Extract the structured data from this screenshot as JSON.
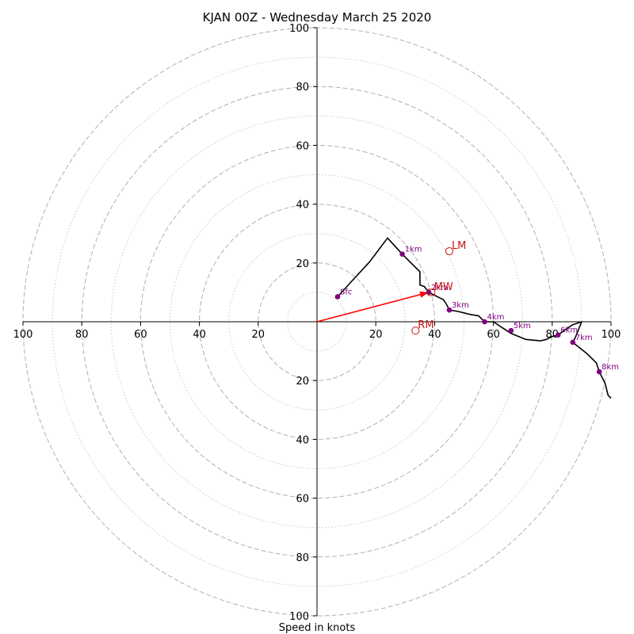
{
  "chart_data": {
    "type": "hodograph",
    "title": "KJAN 00Z - Wednesday March 25 2020",
    "xlabel": "Speed in knots",
    "units": "knots",
    "range": [
      -100,
      100
    ],
    "major_rings": [
      20,
      40,
      60,
      80,
      100
    ],
    "minor_rings": [
      10,
      30,
      50,
      70,
      90
    ],
    "x_tick_labels": [
      "100",
      "80",
      "60",
      "40",
      "20",
      "20",
      "40",
      "60",
      "80",
      "100"
    ],
    "x_tick_values": [
      -100,
      -80,
      -60,
      -40,
      -20,
      20,
      40,
      60,
      80,
      100
    ],
    "y_tick_labels": [
      "100",
      "80",
      "60",
      "40",
      "20",
      "20",
      "40",
      "60",
      "80",
      "100"
    ],
    "y_tick_values": [
      100,
      80,
      60,
      40,
      20,
      -20,
      -40,
      -60,
      -80,
      -100
    ],
    "trace": [
      [
        7,
        8.5
      ],
      [
        12,
        14
      ],
      [
        18,
        20.5
      ],
      [
        24,
        28.5
      ],
      [
        29,
        23
      ],
      [
        32,
        20
      ],
      [
        35,
        17
      ],
      [
        35,
        15
      ],
      [
        35,
        12.5
      ],
      [
        36.5,
        12
      ],
      [
        38,
        10
      ],
      [
        40,
        9
      ],
      [
        42,
        8
      ],
      [
        43,
        7.5
      ],
      [
        44,
        6
      ],
      [
        45,
        4
      ],
      [
        48,
        3.5
      ],
      [
        52,
        2.5
      ],
      [
        55,
        2
      ],
      [
        57,
        0
      ],
      [
        60,
        0
      ],
      [
        63,
        -2
      ],
      [
        66,
        -4
      ],
      [
        71,
        -6
      ],
      [
        76,
        -6.5
      ],
      [
        78,
        -6
      ],
      [
        80,
        -5
      ],
      [
        82,
        -4.5
      ],
      [
        84,
        -3
      ],
      [
        87,
        -1
      ],
      [
        90,
        0
      ],
      [
        88,
        -5
      ],
      [
        87,
        -7
      ],
      [
        92,
        -11
      ],
      [
        95,
        -14
      ],
      [
        96,
        -17
      ],
      [
        98,
        -21
      ],
      [
        99,
        -25
      ],
      [
        100,
        -26
      ]
    ],
    "height_markers": [
      {
        "label": "Sfc",
        "u": 7,
        "v": 8.5
      },
      {
        "label": "1km",
        "u": 29,
        "v": 23
      },
      {
        "label": "2km",
        "u": 38,
        "v": 10
      },
      {
        "label": "3km",
        "u": 45,
        "v": 4
      },
      {
        "label": "4km",
        "u": 57,
        "v": 0
      },
      {
        "label": "5km",
        "u": 66,
        "v": -3
      },
      {
        "label": "6km",
        "u": 82,
        "v": -4.5
      },
      {
        "label": "7km",
        "u": 87,
        "v": -7
      },
      {
        "label": "8km",
        "u": 96,
        "v": -17
      }
    ],
    "storm_motions": [
      {
        "label": "LM",
        "u": 45,
        "v": 24
      },
      {
        "label": "MW",
        "u": 39,
        "v": 10
      },
      {
        "label": "RM",
        "u": 33.5,
        "v": -3
      }
    ],
    "shear_vector": {
      "from": [
        0,
        0
      ],
      "to": [
        38,
        10
      ]
    },
    "colors": {
      "trace": "#000000",
      "markers": "#800080",
      "storm_motion": "#cc1111",
      "shear_vector": "#ff0000",
      "major_ring": "#b0b0b0",
      "minor_ring": "#c8c8c8",
      "axis": "#000000"
    }
  }
}
